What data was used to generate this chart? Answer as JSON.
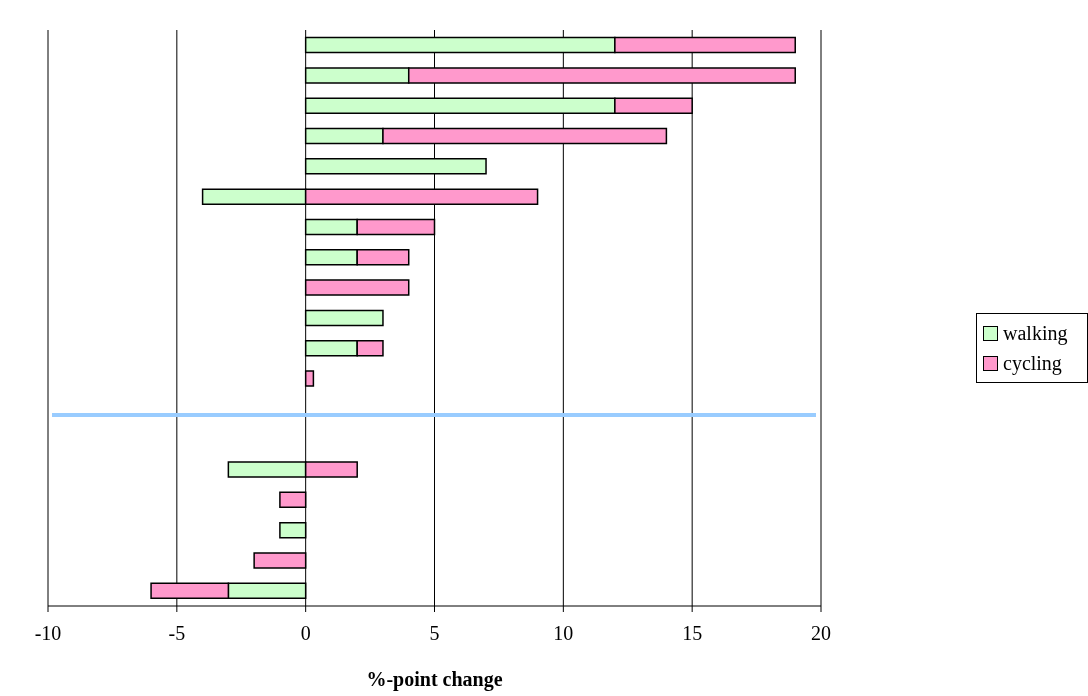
{
  "chart_data": {
    "type": "bar",
    "orientation": "horizontal",
    "stacked": true,
    "categories": [
      null,
      null,
      null,
      null,
      null,
      null,
      null,
      null,
      null,
      null,
      null,
      null,
      null,
      null,
      null,
      null,
      null,
      null,
      null
    ],
    "series": [
      {
        "name": "walking",
        "color": "#ccffcc",
        "values": [
          12,
          4,
          12,
          3,
          7,
          -4,
          2,
          2,
          null,
          3,
          2,
          null,
          null,
          null,
          -3,
          null,
          -1,
          null,
          -3
        ]
      },
      {
        "name": "cycling",
        "color": "#ff99cc",
        "values": [
          7,
          15,
          3,
          11,
          null,
          9,
          3,
          2,
          4,
          null,
          1,
          0.3,
          null,
          null,
          2,
          -1,
          null,
          -2,
          -3
        ]
      }
    ],
    "xlabel": "%-point change",
    "xlim": [
      -10,
      20
    ],
    "xticks": [
      -10,
      -5,
      0,
      5,
      10,
      15,
      20
    ],
    "grid": "x",
    "legend": "right"
  }
}
